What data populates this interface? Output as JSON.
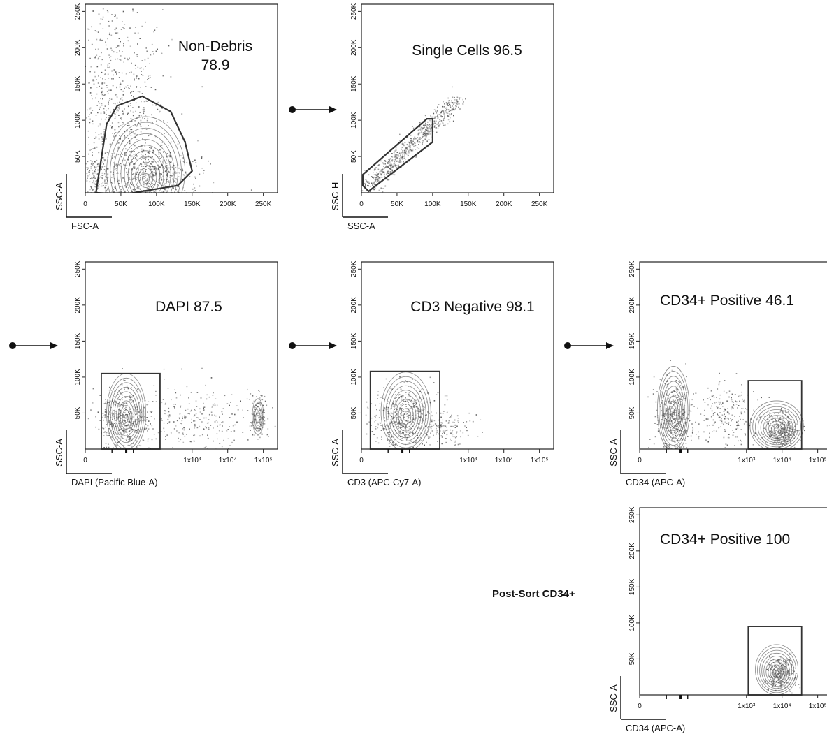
{
  "figure": {
    "side_label": "Post-Sort CD34+"
  },
  "chart_data": [
    {
      "id": "p1",
      "type": "scatter",
      "xlabel": "FSC-A",
      "ylabel": "SSC-A",
      "xscale": "linear",
      "xlim": [
        0,
        270000
      ],
      "ylim": [
        0,
        260000
      ],
      "xticks": [
        {
          "v": 0,
          "l": "0"
        },
        {
          "v": 50000,
          "l": "50K"
        },
        {
          "v": 100000,
          "l": "100K"
        },
        {
          "v": 150000,
          "l": "150K"
        },
        {
          "v": 200000,
          "l": "200K"
        },
        {
          "v": 250000,
          "l": "250K"
        }
      ],
      "yticks": [
        {
          "v": 50000,
          "l": "50K"
        },
        {
          "v": 100000,
          "l": "100K"
        },
        {
          "v": 150000,
          "l": "150K"
        },
        {
          "v": 200000,
          "l": "200K"
        },
        {
          "v": 250000,
          "l": "250K"
        }
      ],
      "gate": {
        "label": "Non-Debris",
        "value": "78.9",
        "shape": "polygon",
        "points": [
          [
            15000,
            0
          ],
          [
            30000,
            95000
          ],
          [
            45000,
            120000
          ],
          [
            80000,
            133000
          ],
          [
            120000,
            112000
          ],
          [
            140000,
            70000
          ],
          [
            150000,
            30000
          ],
          [
            130000,
            10000
          ],
          [
            55000,
            -2000
          ]
        ]
      },
      "populations": [
        {
          "cx": 90000,
          "cy": 25000,
          "sx": 30000,
          "sy": 20000,
          "n": 520
        },
        {
          "cx": 55000,
          "cy": 80000,
          "sx": 35000,
          "sy": 55000,
          "n": 380
        },
        {
          "cx": 40000,
          "cy": 170000,
          "sx": 30000,
          "sy": 55000,
          "n": 330
        },
        {
          "cx": 15000,
          "cy": 20000,
          "sx": 10000,
          "sy": 18000,
          "n": 160
        }
      ],
      "contours": [
        {
          "cx": 85000,
          "cy": 30000,
          "rx": 55000,
          "ry": 75000,
          "k": 11
        }
      ]
    },
    {
      "id": "p2",
      "type": "scatter",
      "xlabel": "SSC-A",
      "ylabel": "SSC-H",
      "xscale": "linear",
      "xlim": [
        0,
        270000
      ],
      "ylim": [
        0,
        260000
      ],
      "xticks": [
        {
          "v": 0,
          "l": "0"
        },
        {
          "v": 50000,
          "l": "50K"
        },
        {
          "v": 100000,
          "l": "100K"
        },
        {
          "v": 150000,
          "l": "150K"
        },
        {
          "v": 200000,
          "l": "200K"
        },
        {
          "v": 250000,
          "l": "250K"
        }
      ],
      "yticks": [
        {
          "v": 50000,
          "l": "50K"
        },
        {
          "v": 100000,
          "l": "100K"
        },
        {
          "v": 150000,
          "l": "150K"
        },
        {
          "v": 200000,
          "l": "200K"
        },
        {
          "v": 250000,
          "l": "250K"
        }
      ],
      "gate": {
        "label": "Single Cells 96.5",
        "value": "",
        "shape": "polygon",
        "points": [
          [
            2000,
            10000
          ],
          [
            10000,
            2000
          ],
          [
            100000,
            70000
          ],
          [
            100000,
            102000
          ],
          [
            92000,
            102000
          ],
          [
            2000,
            25000
          ]
        ]
      },
      "populations": [
        {
          "diag": true,
          "from": 10000,
          "to": 135000,
          "spread": 6000,
          "n": 650
        }
      ],
      "contours": []
    },
    {
      "id": "p3",
      "type": "scatter",
      "xlabel": "DAPI (Pacific Blue-A)",
      "ylabel": "SSC-A",
      "xscale": "biex",
      "xlim": [
        0,
        5.4
      ],
      "ylim": [
        0,
        260000
      ],
      "xticks": [
        {
          "v": 0,
          "l": "0"
        },
        {
          "v": 3,
          "l": "1x10³"
        },
        {
          "v": 4,
          "l": "1x10⁴"
        },
        {
          "v": 5,
          "l": "1x10⁵"
        }
      ],
      "yticks": [
        {
          "v": 50000,
          "l": "50K"
        },
        {
          "v": 100000,
          "l": "100K"
        },
        {
          "v": 150000,
          "l": "150K"
        },
        {
          "v": 200000,
          "l": "200K"
        },
        {
          "v": 250000,
          "l": "250K"
        }
      ],
      "gate": {
        "label": "DAPI 87.5",
        "value": "",
        "shape": "rect",
        "x": [
          0.45,
          2.1
        ],
        "y": [
          0,
          105000
        ]
      },
      "populations": [
        {
          "cx": 1.1,
          "cy": 40000,
          "sx": 0.35,
          "sy": 22000,
          "n": 450
        },
        {
          "cx": 3.0,
          "cy": 40000,
          "sx": 0.8,
          "sy": 22000,
          "n": 260
        },
        {
          "cx": 4.85,
          "cy": 45000,
          "sx": 0.12,
          "sy": 18000,
          "n": 120
        }
      ],
      "contours": [
        {
          "cx": 1.15,
          "cy": 50000,
          "rx": 0.55,
          "ry": 55000,
          "k": 10
        },
        {
          "cx": 4.85,
          "cy": 45000,
          "rx": 0.16,
          "ry": 25000,
          "k": 5
        }
      ]
    },
    {
      "id": "p4",
      "type": "scatter",
      "xlabel": "CD3 (APC-Cy7-A)",
      "ylabel": "SSC-A",
      "xscale": "biex",
      "xlim": [
        0,
        5.4
      ],
      "ylim": [
        0,
        260000
      ],
      "xticks": [
        {
          "v": 0,
          "l": "0"
        },
        {
          "v": 3,
          "l": "1x10³"
        },
        {
          "v": 4,
          "l": "1x10⁴"
        },
        {
          "v": 5,
          "l": "1x10⁵"
        }
      ],
      "yticks": [
        {
          "v": 50000,
          "l": "50K"
        },
        {
          "v": 100000,
          "l": "100K"
        },
        {
          "v": 150000,
          "l": "150K"
        },
        {
          "v": 200000,
          "l": "200K"
        },
        {
          "v": 250000,
          "l": "250K"
        }
      ],
      "gate": {
        "label": "CD3 Negative 98.1",
        "value": "",
        "shape": "rect",
        "x": [
          0.25,
          2.2
        ],
        "y": [
          0,
          108000
        ]
      },
      "populations": [
        {
          "cx": 1.2,
          "cy": 42000,
          "sx": 0.45,
          "sy": 24000,
          "n": 480
        },
        {
          "cx": 2.4,
          "cy": 28000,
          "sx": 0.35,
          "sy": 12000,
          "n": 130
        }
      ],
      "contours": [
        {
          "cx": 1.25,
          "cy": 52000,
          "rx": 0.7,
          "ry": 55000,
          "k": 10
        }
      ]
    },
    {
      "id": "p5",
      "type": "scatter",
      "xlabel": "CD34 (APC-A)",
      "ylabel": "SSC-A",
      "xscale": "biex",
      "xlim": [
        0,
        5.4
      ],
      "ylim": [
        0,
        260000
      ],
      "xticks": [
        {
          "v": 0,
          "l": "0"
        },
        {
          "v": 3,
          "l": "1x10³"
        },
        {
          "v": 4,
          "l": "1x10⁴"
        },
        {
          "v": 5,
          "l": "1x10⁵"
        }
      ],
      "yticks": [
        {
          "v": 50000,
          "l": "50K"
        },
        {
          "v": 100000,
          "l": "100K"
        },
        {
          "v": 150000,
          "l": "150K"
        },
        {
          "v": 200000,
          "l": "200K"
        },
        {
          "v": 250000,
          "l": "250K"
        }
      ],
      "gate": {
        "label": "CD34+ Positive 46.1",
        "value": "",
        "shape": "rect",
        "x": [
          3.05,
          4.55
        ],
        "y": [
          0,
          95000
        ]
      },
      "populations": [
        {
          "cx": 0.95,
          "cy": 45000,
          "sx": 0.25,
          "sy": 24000,
          "n": 400
        },
        {
          "cx": 2.4,
          "cy": 50000,
          "sx": 0.5,
          "sy": 22000,
          "n": 220
        },
        {
          "cx": 4.0,
          "cy": 25000,
          "sx": 0.22,
          "sy": 12000,
          "n": 380
        }
      ],
      "contours": [
        {
          "cx": 0.95,
          "cy": 55000,
          "rx": 0.45,
          "ry": 60000,
          "k": 10
        },
        {
          "cx": 3.85,
          "cy": 32000,
          "rx": 0.75,
          "ry": 35000,
          "k": 10
        }
      ]
    },
    {
      "id": "p6",
      "type": "scatter",
      "xlabel": "CD34 (APC-A)",
      "ylabel": "SSC-A",
      "xscale": "biex",
      "xlim": [
        0,
        5.4
      ],
      "ylim": [
        0,
        260000
      ],
      "xticks": [
        {
          "v": 0,
          "l": "0"
        },
        {
          "v": 3,
          "l": "1x10³"
        },
        {
          "v": 4,
          "l": "1x10⁴"
        },
        {
          "v": 5,
          "l": "1x10⁵"
        }
      ],
      "yticks": [
        {
          "v": 50000,
          "l": "50K"
        },
        {
          "v": 100000,
          "l": "100K"
        },
        {
          "v": 150000,
          "l": "150K"
        },
        {
          "v": 200000,
          "l": "200K"
        },
        {
          "v": 250000,
          "l": "250K"
        }
      ],
      "gate": {
        "label": "CD34+ Positive 100",
        "value": "",
        "shape": "rect",
        "x": [
          3.05,
          4.55
        ],
        "y": [
          0,
          95000
        ]
      },
      "populations": [
        {
          "cx": 3.95,
          "cy": 30000,
          "sx": 0.2,
          "sy": 12000,
          "n": 320
        }
      ],
      "contours": [
        {
          "cx": 3.85,
          "cy": 35000,
          "rx": 0.6,
          "ry": 35000,
          "k": 10
        }
      ]
    }
  ]
}
